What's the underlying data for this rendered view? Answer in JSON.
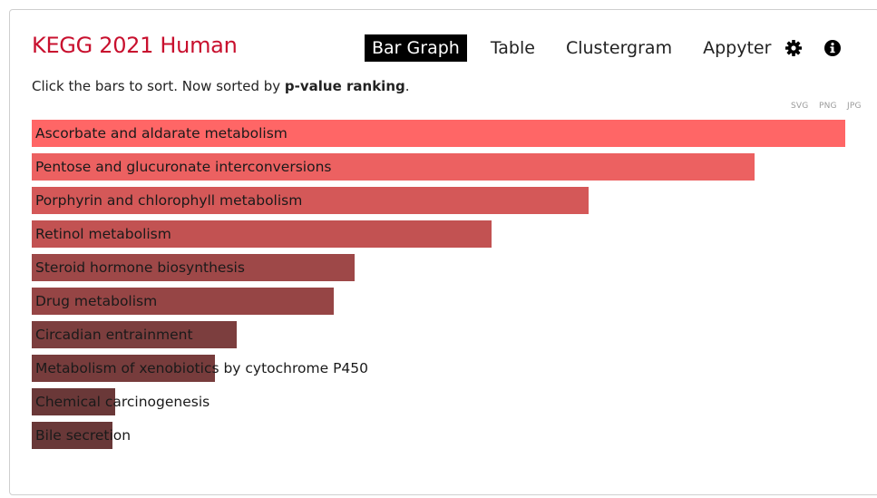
{
  "header": {
    "title": "KEGG 2021 Human"
  },
  "nav": {
    "tabs": [
      {
        "label": "Bar Graph",
        "active": true
      },
      {
        "label": "Table",
        "active": false
      },
      {
        "label": "Clustergram",
        "active": false
      },
      {
        "label": "Appyter",
        "active": false
      }
    ],
    "settings_icon": "gear-icon",
    "info_icon": "info-icon"
  },
  "subtitle": {
    "prefix": "Click the bars to sort. Now sorted by ",
    "sort_key": "p-value ranking",
    "suffix": "."
  },
  "export": {
    "svg": "SVG",
    "png": "PNG",
    "jpg": "JPG"
  },
  "chart_data": {
    "type": "bar",
    "orientation": "horizontal",
    "categories": [
      "Ascorbate and aldarate metabolism",
      "Pentose and glucuronate interconversions",
      "Porphyrin and chlorophyll metabolism",
      "Retinol metabolism",
      "Steroid hormone biosynthesis",
      "Drug metabolism",
      "Circadian entrainment",
      "Metabolism of xenobiotics by cytochrome P450",
      "Chemical carcinogenesis",
      "Bile secretion"
    ],
    "values": [
      1.0,
      0.888,
      0.684,
      0.565,
      0.397,
      0.371,
      0.252,
      0.225,
      0.103,
      0.099
    ],
    "colors": [
      "#ff6666",
      "#ec6161",
      "#d45858",
      "#c25252",
      "#9e4848",
      "#964545",
      "#7c3e3e",
      "#773c3c",
      "#6a3838",
      "#693838"
    ],
    "title": "",
    "xlabel": "",
    "ylabel": "",
    "xlim": [
      0,
      1
    ]
  }
}
